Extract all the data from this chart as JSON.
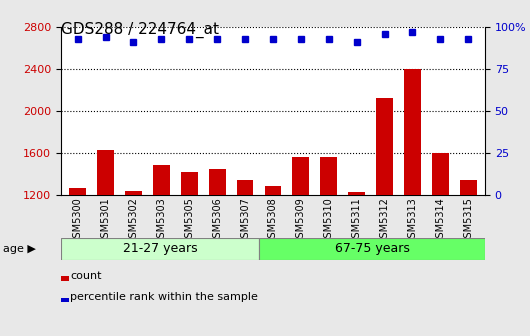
{
  "title": "GDS288 / 224764_at",
  "categories": [
    "GSM5300",
    "GSM5301",
    "GSM5302",
    "GSM5303",
    "GSM5305",
    "GSM5306",
    "GSM5307",
    "GSM5308",
    "GSM5309",
    "GSM5310",
    "GSM5311",
    "GSM5312",
    "GSM5313",
    "GSM5314",
    "GSM5315"
  ],
  "counts": [
    1270,
    1630,
    1240,
    1480,
    1420,
    1450,
    1340,
    1280,
    1560,
    1560,
    1230,
    2120,
    2400,
    1600,
    1340
  ],
  "percentiles": [
    93,
    94,
    91,
    93,
    93,
    93,
    93,
    93,
    93,
    93,
    91,
    96,
    97,
    93,
    93
  ],
  "ylim_left": [
    1200,
    2800
  ],
  "ylim_right": [
    0,
    100
  ],
  "yticks_left": [
    1200,
    1600,
    2000,
    2400,
    2800
  ],
  "yticks_right": [
    0,
    25,
    50,
    75,
    100
  ],
  "bar_color": "#cc0000",
  "dot_color": "#0000cc",
  "group1_label": "21-27 years",
  "group2_label": "67-75 years",
  "group1_count": 7,
  "group2_count": 8,
  "group1_color": "#ccffcc",
  "group2_color": "#66ff66",
  "age_label": "age",
  "legend_count": "count",
  "legend_percentile": "percentile rank within the sample",
  "bg_color": "#e8e8e8",
  "plot_bg_color": "#ffffff",
  "title_fontsize": 11,
  "tick_fontsize": 8
}
